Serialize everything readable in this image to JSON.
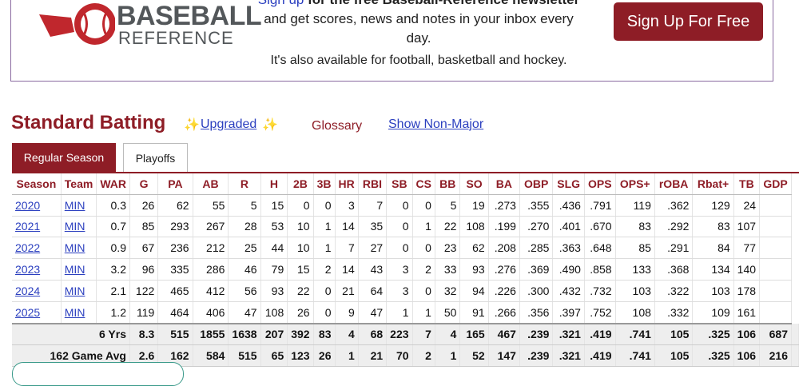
{
  "promo": {
    "logo_word1": "BASEBALL",
    "logo_word2": "REFERENCE",
    "line1_link": "Sign up",
    "line1_rest": " for the free Baseball-Reference newsletter",
    "line2": "and get scores, news and notes in your inbox every",
    "line3": "day.",
    "line4": "It's also available for football, basketball and hockey.",
    "signup_button": "Sign Up For Free"
  },
  "section": {
    "title": "Standard Batting",
    "sparkle": "✨",
    "upgraded": "Upgraded",
    "glossary": "Glossary",
    "show_non_major": "Show Non-Major"
  },
  "tabs": {
    "regular": "Regular Season",
    "playoffs": "Playoffs"
  },
  "table": {
    "columns": [
      "Season",
      "Team",
      "WAR",
      "G",
      "PA",
      "AB",
      "R",
      "H",
      "2B",
      "3B",
      "HR",
      "RBI",
      "SB",
      "CS",
      "BB",
      "SO",
      "BA",
      "OBP",
      "SLG",
      "OPS",
      "OPS+",
      "rOBA",
      "Rbat+",
      "TB",
      "GDP"
    ],
    "rows": [
      [
        "2020",
        "MIN",
        "0.3",
        "26",
        "62",
        "55",
        "5",
        "15",
        "0",
        "0",
        "3",
        "7",
        "0",
        "0",
        "5",
        "19",
        ".273",
        ".355",
        ".436",
        ".791",
        "119",
        ".362",
        "129",
        "24",
        ""
      ],
      [
        "2021",
        "MIN",
        "0.7",
        "85",
        "293",
        "267",
        "28",
        "53",
        "10",
        "1",
        "14",
        "35",
        "0",
        "1",
        "22",
        "108",
        ".199",
        ".270",
        ".401",
        ".670",
        "83",
        ".292",
        "83",
        "107",
        ""
      ],
      [
        "2022",
        "MIN",
        "0.9",
        "67",
        "236",
        "212",
        "25",
        "44",
        "10",
        "1",
        "7",
        "27",
        "0",
        "0",
        "23",
        "62",
        ".208",
        ".285",
        ".363",
        ".648",
        "85",
        ".291",
        "84",
        "77",
        ""
      ],
      [
        "2023",
        "MIN",
        "3.2",
        "96",
        "335",
        "286",
        "46",
        "79",
        "15",
        "2",
        "14",
        "43",
        "3",
        "2",
        "33",
        "93",
        ".276",
        ".369",
        ".490",
        ".858",
        "133",
        ".368",
        "134",
        "140",
        ""
      ],
      [
        "2024",
        "MIN",
        "2.1",
        "122",
        "465",
        "412",
        "56",
        "93",
        "22",
        "0",
        "21",
        "64",
        "3",
        "0",
        "32",
        "94",
        ".226",
        ".300",
        ".432",
        ".732",
        "103",
        ".322",
        "103",
        "178",
        ""
      ],
      [
        "2025",
        "MIN",
        "1.2",
        "119",
        "464",
        "406",
        "47",
        "108",
        "26",
        "0",
        "9",
        "47",
        "1",
        "1",
        "50",
        "91",
        ".266",
        ".356",
        ".397",
        ".752",
        "108",
        ".332",
        "109",
        "161",
        ""
      ]
    ],
    "summary": [
      [
        "6 Yrs",
        "8.3",
        "515",
        "1855",
        "1638",
        "207",
        "392",
        "83",
        "4",
        "68",
        "223",
        "7",
        "4",
        "165",
        "467",
        ".239",
        ".321",
        ".419",
        ".741",
        "105",
        ".325",
        "106",
        "687",
        ""
      ],
      [
        "162 Game Avg",
        "2.6",
        "162",
        "584",
        "515",
        "65",
        "123",
        "26",
        "1",
        "21",
        "70",
        "2",
        "1",
        "52",
        "147",
        ".239",
        ".321",
        ".419",
        ".741",
        "105",
        ".325",
        "106",
        "216",
        ""
      ]
    ]
  },
  "colors": {
    "brand": "#8e1d26",
    "link": "#2b3fbf"
  }
}
